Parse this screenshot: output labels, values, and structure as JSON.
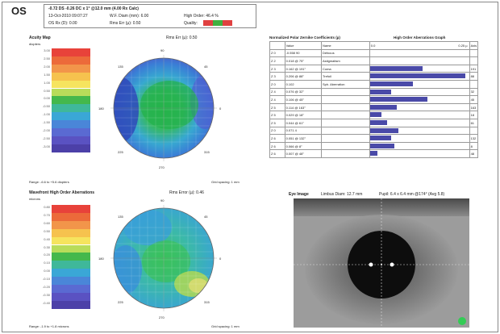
{
  "header": {
    "eye": "OS",
    "line1": "-0.72 DS -0.26 DC x 1° @12.0 mm (4.00 Rx Calc)",
    "line2a": "13-Oct-2010 09:07:27",
    "line2b": "W.F. Diam (mm): 6.00",
    "line2c": "High Order: 46.4 %",
    "line3a": "OS Rx (D): 0.00",
    "line3b": "Rms Err (µ): 0.50",
    "line3c": "Quality:",
    "quality_colors": [
      "#e04040",
      "#40b040",
      "#e04040"
    ]
  },
  "acuity": {
    "title": "Acuity Map",
    "rms": "Rms Err (µ): 0.50",
    "units": "diopters",
    "range": "Range: -6.6 to +5.6 diopters",
    "spacing": "Grid spacing: 1 mm",
    "scale_ticks": [
      "3.00",
      "2.50",
      "2.00",
      "1.50",
      "1.00",
      "0.50",
      "0.00",
      "-0.50",
      "-1.00",
      "-1.50",
      "-2.00",
      "-2.50",
      "-3.00"
    ]
  },
  "wavefront": {
    "title": "Wavefront High Order Aberrations",
    "rms": "Rms Error (µ): 0.46",
    "units": "microns",
    "range": "Range: -1.9 to +1.8 microns",
    "spacing": "Grid spacing: 1 mm",
    "scale_ticks": [
      "0.80",
      "0.70",
      "0.60",
      "0.50",
      "0.40",
      "0.30",
      "0.20",
      "0.10",
      "0.00",
      "-0.10",
      "-0.20",
      "-0.30",
      "-0.40"
    ]
  },
  "axis_labels": {
    "top": "90",
    "bottom": "270",
    "left": "180",
    "right": "0",
    "tl": "135",
    "tr": "45",
    "bl": "225",
    "br": "315"
  },
  "zernike": {
    "title": "Normalized Polar Zernike Coefficients (µ)",
    "graph_title": "High Order Aberrations Graph",
    "headers": [
      "",
      "Value",
      "Name",
      "0.0",
      "0.25 µ",
      "Axis"
    ],
    "rows": [
      {
        "term": "Z 0",
        "value": "-0.558 90",
        "name": "Defocus",
        "bar": 0,
        "axis": ""
      },
      {
        "term": "Z 2",
        "value": "0.018 @ 75°",
        "name": "Astigmatism",
        "bar": 0,
        "axis": ""
      },
      {
        "term": "Z 3",
        "value": "0.162 @ 191°",
        "name": "Coma",
        "bar": 0.55,
        "axis": "191"
      },
      {
        "term": "Z 3",
        "value": "0.206 @ 88°",
        "name": "Trefoil",
        "bar": 1.0,
        "axis": "88"
      },
      {
        "term": "Z 0",
        "value": "0.102",
        "name": "Sph. Aberration",
        "bar": 0.45,
        "axis": ""
      },
      {
        "term": "Z 4",
        "value": "0.076 @ 32°",
        "name": "",
        "bar": 0.22,
        "axis": "32"
      },
      {
        "term": "Z 4",
        "value": "0.106 @ 45°",
        "name": "",
        "bar": 0.6,
        "axis": "45"
      },
      {
        "term": "Z 5",
        "value": "0.114 @ 163°",
        "name": "",
        "bar": 0.28,
        "axis": "163"
      },
      {
        "term": "Z 5",
        "value": "0.029 @ 18°",
        "name": "",
        "bar": 0.12,
        "axis": "18"
      },
      {
        "term": "Z 5",
        "value": "0.044 @ 61°",
        "name": "",
        "bar": 0.18,
        "axis": "61"
      },
      {
        "term": "Z 0",
        "value": "0.071 4",
        "name": "",
        "bar": 0.3,
        "axis": ""
      },
      {
        "term": "Z 6",
        "value": "0.051 @ 132°",
        "name": "",
        "bar": 0.22,
        "axis": "132"
      },
      {
        "term": "Z 6",
        "value": "0.066 @ 8°",
        "name": "",
        "bar": 0.26,
        "axis": "8"
      },
      {
        "term": "Z 6",
        "value": "0.007 @ 48°",
        "name": "",
        "bar": 0.08,
        "axis": "48"
      }
    ]
  },
  "eye_image": {
    "title": "Eye Image",
    "limbus": "Limbus Diam: 12.7 mm",
    "pupil": "Pupil: 6.4 x 6.4 mm @174° (Avg 5.8)"
  }
}
